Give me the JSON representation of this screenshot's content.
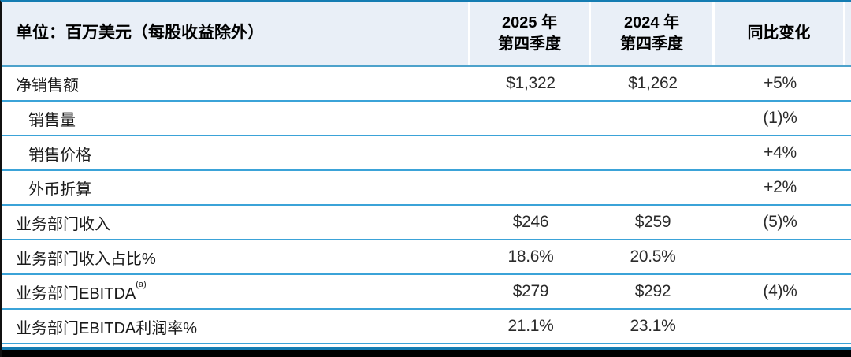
{
  "table": {
    "unit_header": "单位：百万美元（每股收益除外）",
    "col_headers": [
      {
        "line1": "2025 年",
        "line2": "第四季度"
      },
      {
        "line1": "2024 年",
        "line2": "第四季度"
      },
      {
        "line1": "同比变化",
        "line2": ""
      }
    ],
    "rows": [
      {
        "label": "净销售额",
        "sup": "",
        "q4_2025": "$1,322",
        "q4_2024": "$1,262",
        "yoy_change": "+5%"
      },
      {
        "label": "销售量",
        "sup": "",
        "q4_2025": "",
        "q4_2024": "",
        "yoy_change": "(1)%"
      },
      {
        "label": "销售价格",
        "sup": "",
        "q4_2025": "",
        "q4_2024": "",
        "yoy_change": "+4%"
      },
      {
        "label": "外币折算",
        "sup": "",
        "q4_2025": "",
        "q4_2024": "",
        "yoy_change": "+2%"
      },
      {
        "label": "业务部门收入",
        "sup": "",
        "q4_2025": "$246",
        "q4_2024": "$259",
        "yoy_change": "(5)%"
      },
      {
        "label": "业务部门收入占比%",
        "sup": "",
        "q4_2025": "18.6%",
        "q4_2024": "20.5%",
        "yoy_change": ""
      },
      {
        "label": "业务部门EBITDA",
        "sup": "(a)",
        "q4_2025": "$279",
        "q4_2024": "$292",
        "yoy_change": "(4)%"
      },
      {
        "label": "业务部门EBITDA利润率%",
        "sup": "",
        "q4_2025": "21.1%",
        "q4_2024": "23.1%",
        "yoy_change": ""
      }
    ]
  },
  "colors": {
    "top_border": "#147cb2",
    "header_background": "#e9eff7",
    "header_column_separator": "#ffffff",
    "header_bottom_divider": "#4da2cb",
    "row_divider": "#3ba3d8",
    "bottom_blue_line": "#147cb2",
    "bottom_bar": "#000000",
    "text": "#1a1a1a"
  }
}
